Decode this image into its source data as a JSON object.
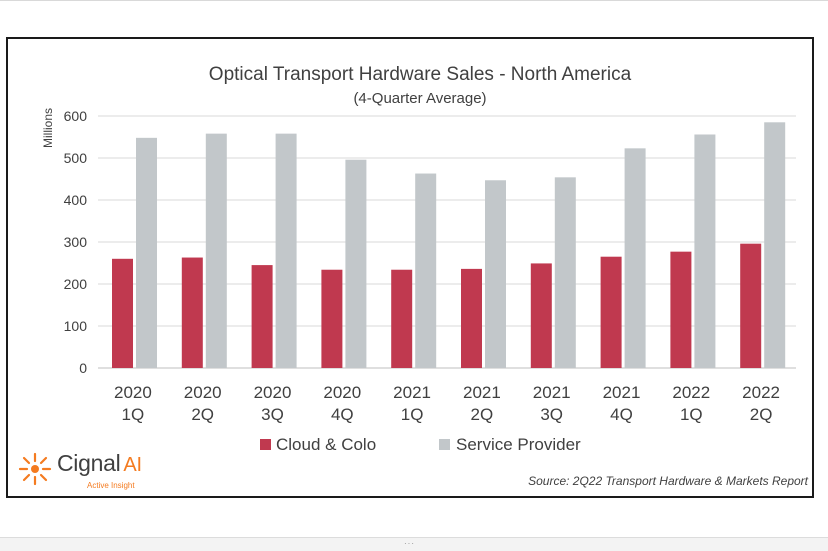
{
  "chart_data": {
    "type": "bar",
    "title": "Optical Transport Hardware Sales - North America",
    "subtitle": "(4-Quarter Average)",
    "ylabel": "Millions",
    "ylim": [
      0,
      600
    ],
    "yticks": [
      0,
      100,
      200,
      300,
      400,
      500,
      600
    ],
    "grid": true,
    "legend_position": "bottom",
    "categories": [
      [
        "2020",
        "1Q"
      ],
      [
        "2020",
        "2Q"
      ],
      [
        "2020",
        "3Q"
      ],
      [
        "2020",
        "4Q"
      ],
      [
        "2021",
        "1Q"
      ],
      [
        "2021",
        "2Q"
      ],
      [
        "2021",
        "3Q"
      ],
      [
        "2021",
        "4Q"
      ],
      [
        "2022",
        "1Q"
      ],
      [
        "2022",
        "2Q"
      ]
    ],
    "series": [
      {
        "name": "Cloud & Colo",
        "color": "#c0394f",
        "values": [
          260,
          263,
          245,
          234,
          234,
          236,
          249,
          265,
          277,
          296
        ]
      },
      {
        "name": "Service Provider",
        "color": "#c2c7ca",
        "values": [
          548,
          558,
          558,
          496,
          463,
          447,
          454,
          523,
          556,
          585
        ]
      }
    ]
  },
  "logo": {
    "brand": "Cignal",
    "ai": "AI",
    "tagline": "Active Insight",
    "color": "#f47b20"
  },
  "source": "Source: 2Q22 Transport Hardware & Markets Report"
}
